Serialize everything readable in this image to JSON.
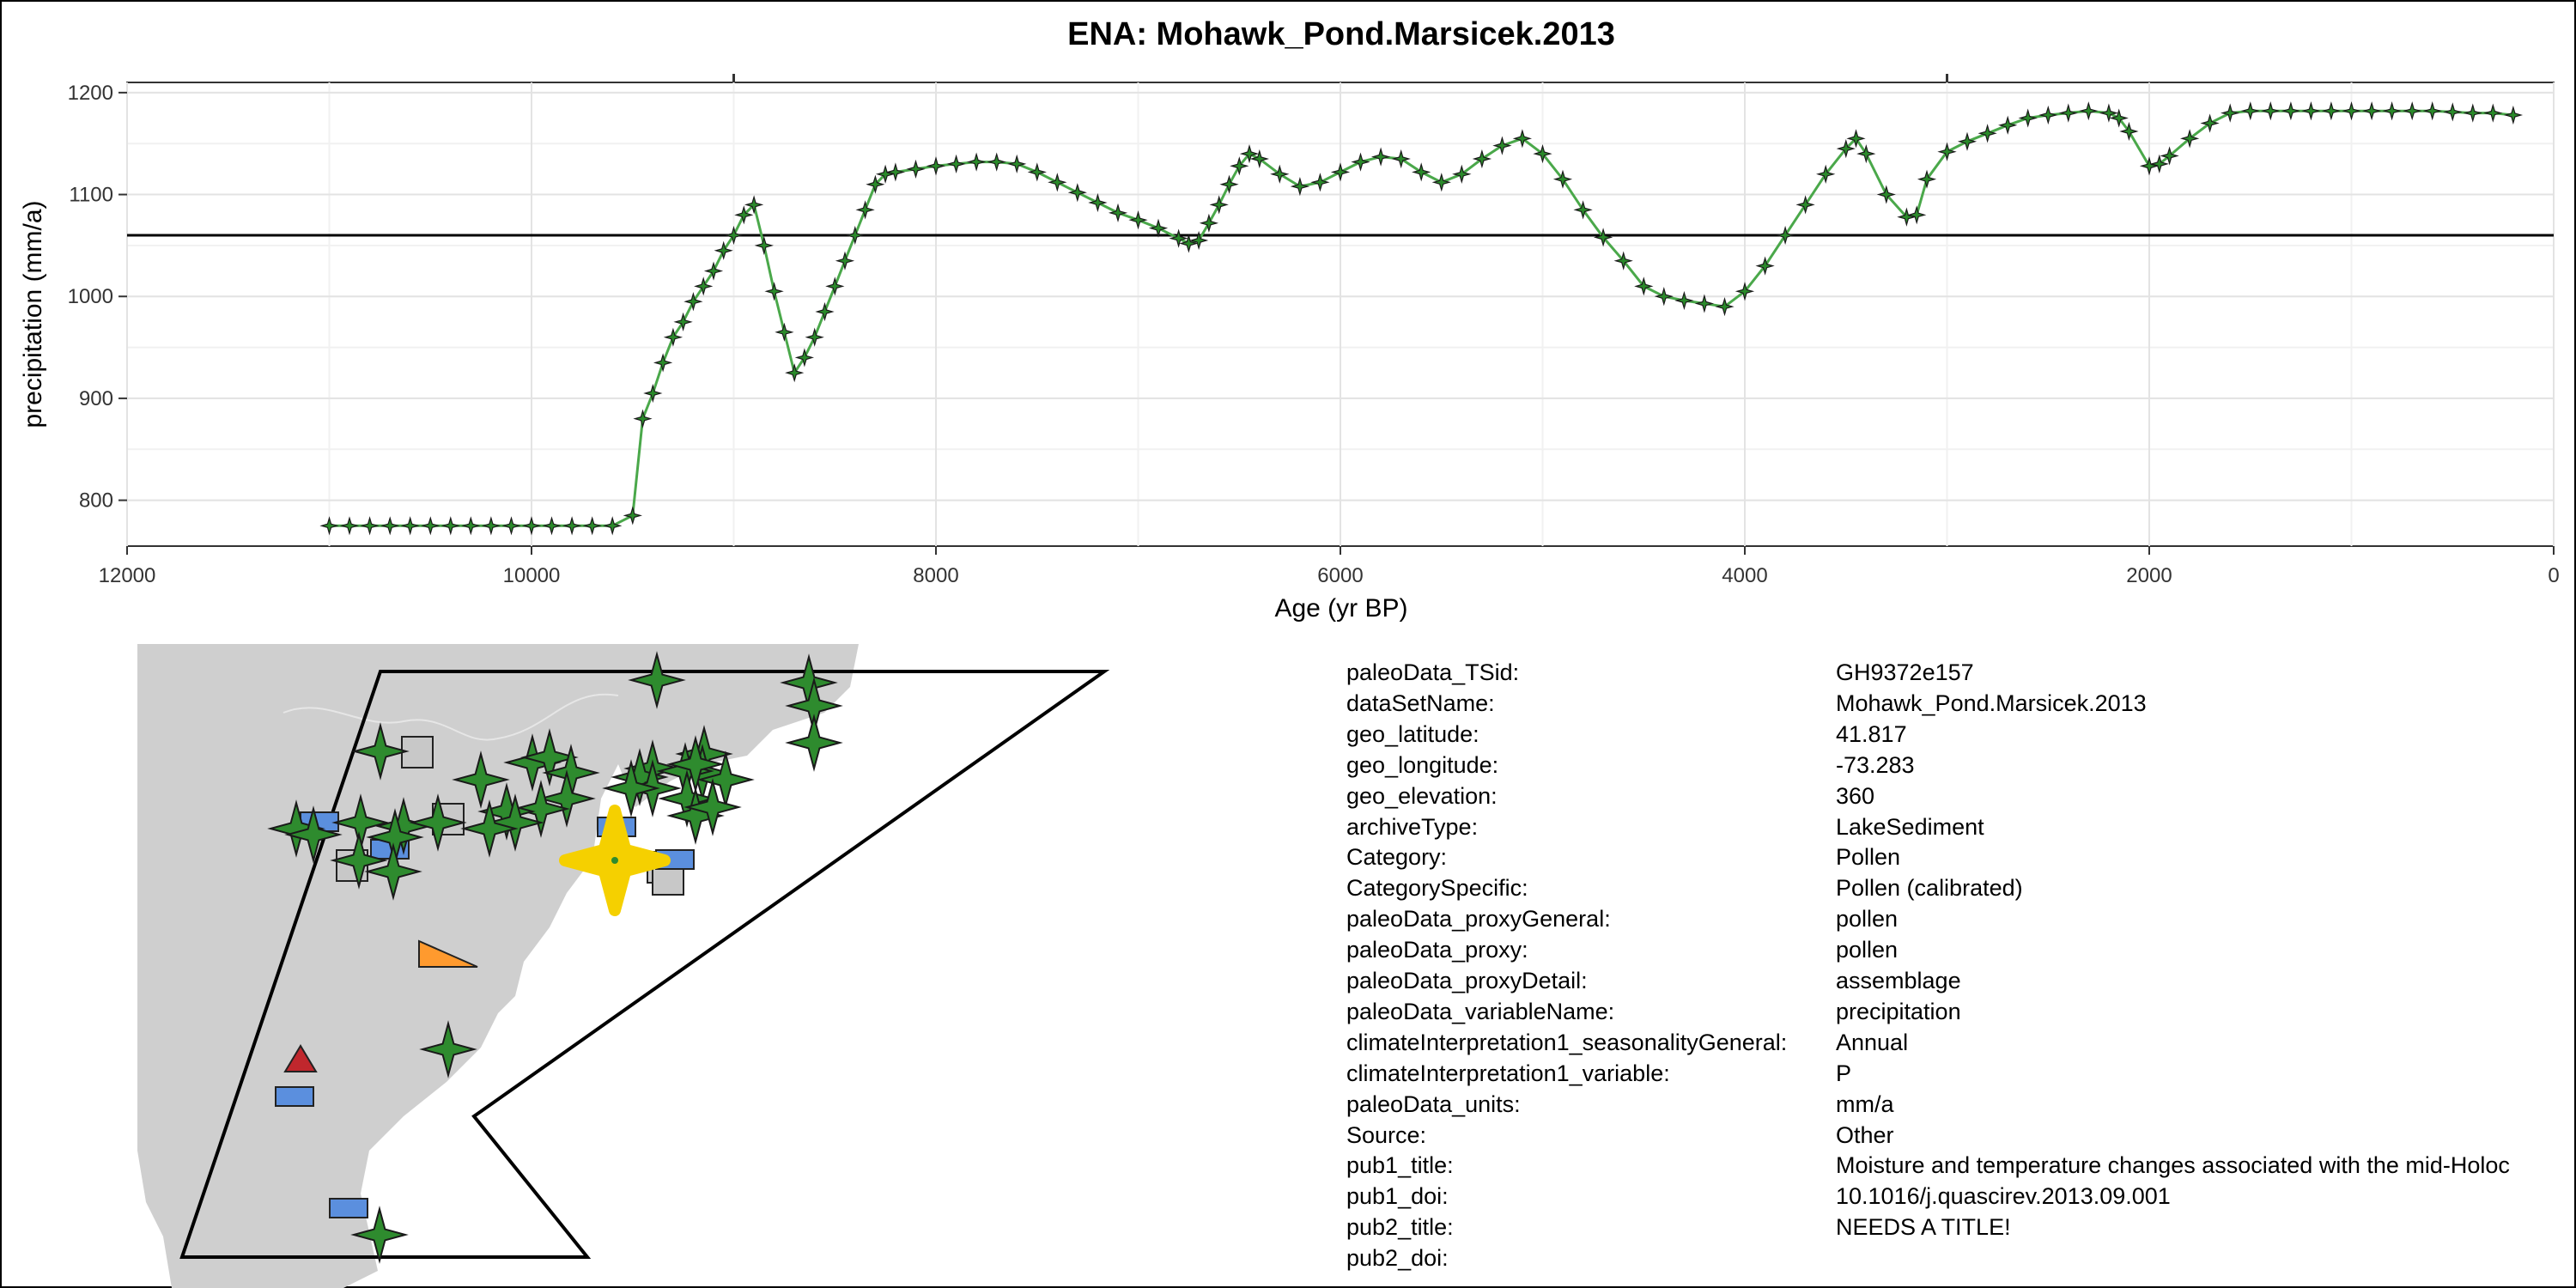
{
  "chart_data": {
    "type": "line",
    "title": "ENA: Mohawk_Pond.Marsicek.2013",
    "xlabel": "Age (yr BP)",
    "ylabel": "precipitation (mm/a)",
    "x_reversed": true,
    "xlim": [
      12000,
      0
    ],
    "ylim": [
      755,
      1210
    ],
    "x_ticks": [
      12000,
      10000,
      8000,
      6000,
      4000,
      2000,
      0
    ],
    "x_tick_labels": [
      "12000",
      "10000",
      "8000",
      "6000",
      "4000",
      "2000",
      "0"
    ],
    "y_ticks": [
      800,
      900,
      1000,
      1100,
      1200
    ],
    "y_tick_labels": [
      "800",
      "900",
      "1000",
      "1100",
      "1200"
    ],
    "grid": true,
    "reference_line": 1060,
    "line_color": "#4aa84a",
    "marker_color": "#2a8a2a",
    "series": [
      {
        "x": [
          11000,
          10900,
          10800,
          10700,
          10600,
          10500,
          10400,
          10300,
          10200,
          10100,
          10000,
          9900,
          9800,
          9700,
          9600,
          9500,
          9450,
          9400,
          9350,
          9300,
          9250,
          9200,
          9150,
          9100,
          9050,
          9000,
          8950,
          8900,
          8850,
          8800,
          8750,
          8700,
          8650,
          8600,
          8550,
          8500,
          8450,
          8400,
          8350,
          8300,
          8250,
          8200,
          8100,
          8000,
          7900,
          7800,
          7700,
          7600,
          7500,
          7400,
          7300,
          7200,
          7100,
          7000,
          6900,
          6800,
          6750,
          6700,
          6650,
          6600,
          6550,
          6500,
          6450,
          6400,
          6300,
          6200,
          6100,
          6000,
          5900,
          5800,
          5700,
          5600,
          5500,
          5400,
          5300,
          5200,
          5100,
          5000,
          4900,
          4800,
          4700,
          4600,
          4500,
          4400,
          4300,
          4200,
          4100,
          4000,
          3900,
          3800,
          3700,
          3600,
          3500,
          3450,
          3400,
          3300,
          3200,
          3150,
          3100,
          3000,
          2900,
          2800,
          2700,
          2600,
          2500,
          2400,
          2300,
          2200,
          2150,
          2100,
          2000,
          1950,
          1900,
          1800,
          1700,
          1600,
          1500,
          1400,
          1300,
          1200,
          1100,
          1000,
          900,
          800,
          700,
          600,
          500,
          400,
          300,
          200
        ],
        "y": [
          775,
          775,
          775,
          775,
          775,
          775,
          775,
          775,
          775,
          775,
          775,
          775,
          775,
          775,
          775,
          785,
          880,
          905,
          935,
          960,
          975,
          995,
          1010,
          1025,
          1045,
          1060,
          1080,
          1090,
          1050,
          1005,
          965,
          925,
          940,
          960,
          985,
          1010,
          1035,
          1060,
          1085,
          1110,
          1120,
          1122,
          1125,
          1128,
          1130,
          1132,
          1132,
          1130,
          1122,
          1112,
          1102,
          1092,
          1082,
          1075,
          1067,
          1057,
          1052,
          1055,
          1072,
          1090,
          1110,
          1128,
          1140,
          1135,
          1120,
          1108,
          1112,
          1122,
          1132,
          1137,
          1135,
          1122,
          1112,
          1120,
          1135,
          1148,
          1155,
          1140,
          1115,
          1085,
          1058,
          1035,
          1010,
          1000,
          996,
          993,
          990,
          1005,
          1030,
          1060,
          1090,
          1120,
          1145,
          1155,
          1140,
          1100,
          1078,
          1080,
          1115,
          1142,
          1152,
          1160,
          1168,
          1175,
          1178,
          1180,
          1182,
          1180,
          1175,
          1162,
          1128,
          1130,
          1138,
          1155,
          1170,
          1180,
          1182,
          1182,
          1182,
          1182,
          1182,
          1182,
          1182,
          1182,
          1182,
          1182,
          1181,
          1180,
          1180,
          1178
        ]
      }
    ]
  },
  "map": {
    "highlight_color": "#f5d000",
    "marker_colors": {
      "pollen": "#2e8b2e",
      "lake": "#5b8fde",
      "other": "#c8c8c8",
      "orange": "#ff9a2e",
      "red": "#c0272d"
    }
  },
  "metadata": [
    {
      "key": "paleoData_TSid:",
      "value": "GH9372e157"
    },
    {
      "key": "dataSetName:",
      "value": "Mohawk_Pond.Marsicek.2013"
    },
    {
      "key": "geo_latitude:",
      "value": "41.817"
    },
    {
      "key": "geo_longitude:",
      "value": "-73.283"
    },
    {
      "key": "geo_elevation:",
      "value": "360"
    },
    {
      "key": "archiveType:",
      "value": "LakeSediment"
    },
    {
      "key": "Category:",
      "value": "Pollen"
    },
    {
      "key": "CategorySpecific:",
      "value": "Pollen (calibrated)"
    },
    {
      "key": "paleoData_proxyGeneral:",
      "value": "pollen"
    },
    {
      "key": "paleoData_proxy:",
      "value": "pollen"
    },
    {
      "key": "paleoData_proxyDetail:",
      "value": "assemblage"
    },
    {
      "key": "paleoData_variableName:",
      "value": "precipitation"
    },
    {
      "key": "climateInterpretation1_seasonalityGeneral:",
      "value": "Annual"
    },
    {
      "key": "climateInterpretation1_variable:",
      "value": "P"
    },
    {
      "key": "paleoData_units:",
      "value": "mm/a"
    },
    {
      "key": "Source:",
      "value": "Other"
    },
    {
      "key": "pub1_title:",
      "value": "Moisture and temperature changes associated with the mid-Holoc"
    },
    {
      "key": "pub1_doi:",
      "value": "10.1016/j.quascirev.2013.09.001"
    },
    {
      "key": "pub2_title:",
      "value": "NEEDS A TITLE!"
    },
    {
      "key": "pub2_doi:",
      "value": ""
    }
  ]
}
